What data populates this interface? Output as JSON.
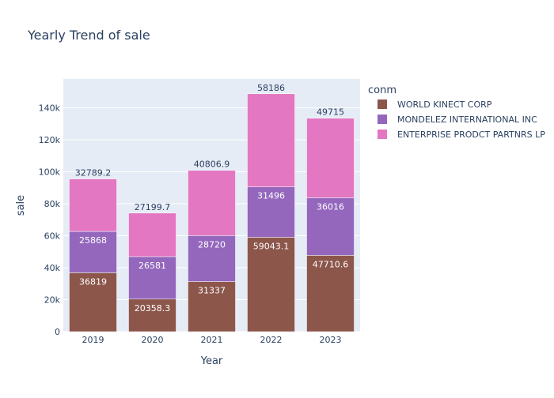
{
  "chart_data": {
    "type": "bar",
    "stacked": true,
    "title": "Yearly Trend of sale",
    "xlabel": "Year",
    "ylabel": "sale",
    "categories": [
      "2019",
      "2020",
      "2021",
      "2022",
      "2023"
    ],
    "ylim": [
      0,
      158000
    ],
    "yticks": [
      {
        "value": 0,
        "label": "0"
      },
      {
        "value": 20000,
        "label": "20k"
      },
      {
        "value": 40000,
        "label": "40k"
      },
      {
        "value": 60000,
        "label": "60k"
      },
      {
        "value": 80000,
        "label": "80k"
      },
      {
        "value": 100000,
        "label": "100k"
      },
      {
        "value": 120000,
        "label": "120k"
      },
      {
        "value": 140000,
        "label": "140k"
      }
    ],
    "legend_title": "conm",
    "legend_position": "right",
    "grid": true,
    "series": [
      {
        "name": "WORLD KINECT CORP",
        "color": "#8c564b",
        "values": [
          36819,
          20358.3,
          31337,
          59043.1,
          47710.6
        ],
        "labels": [
          "36819",
          "20358.3",
          "31337",
          "59043.1",
          "47710.6"
        ],
        "label_position": "inside"
      },
      {
        "name": "MONDELEZ INTERNATIONAL INC",
        "color": "#9467bd",
        "values": [
          25868,
          26581,
          28720,
          31496,
          36016
        ],
        "labels": [
          "25868",
          "26581",
          "28720",
          "31496",
          "36016"
        ],
        "label_position": "inside"
      },
      {
        "name": "ENTERPRISE PRODCT PARTNRS LP",
        "color": "#e377c2",
        "values": [
          32789.2,
          27199.7,
          40806.9,
          58186,
          49715
        ],
        "labels": [
          "32789.2",
          "27199.7",
          "40806.9",
          "58186",
          "49715"
        ],
        "label_position": "outside"
      }
    ]
  }
}
